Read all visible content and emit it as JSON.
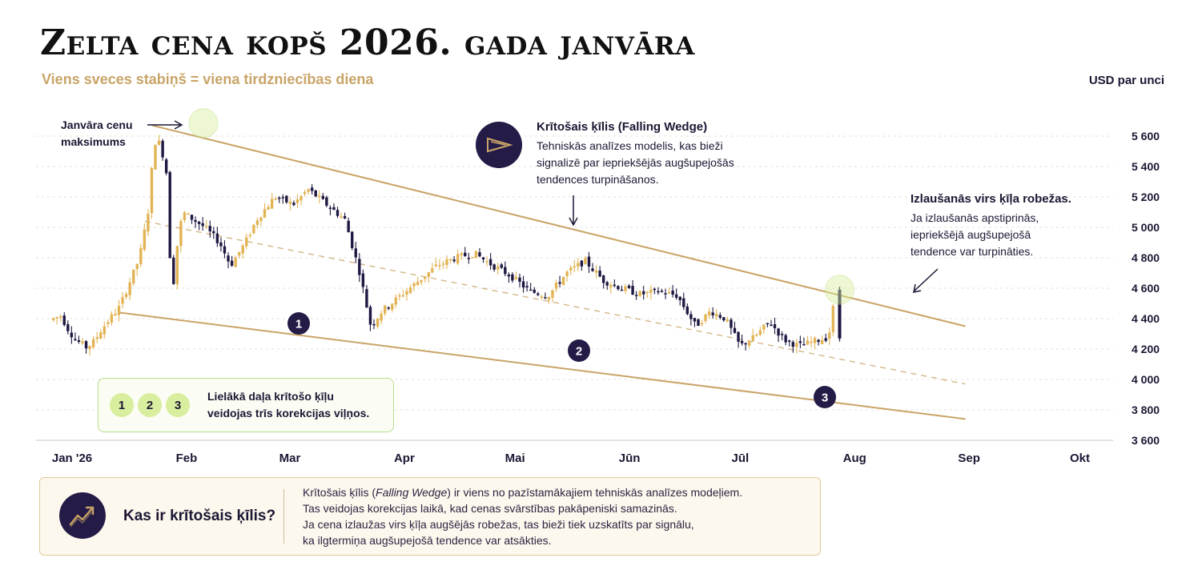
{
  "title": "Zelta cena kopš 2026. gada janvāra",
  "subtitle": "Viens sveces stabiņš = viena tirdzniecības diena",
  "unit_label": "USD par unci",
  "annotations": {
    "peak_line1": "Janvāra cenu",
    "peak_line2": "maksimums",
    "wedge_title": "Krītošais ķīlis (Falling Wedge)",
    "wedge_desc_1": "Tehniskās analīzes modelis, kas bieži",
    "wedge_desc_2": "signalizē par iepriekšējās augšupejošās",
    "wedge_desc_3": "tendences turpināšanos.",
    "wedge_icon": "falling-wedge-icon",
    "breakout_title": "Izlaušanās virs ķīļa robežas.",
    "breakout_desc_1": "Ja izlaušanās apstiprinās,",
    "breakout_desc_2": "iepriekšējā augšupejošā",
    "breakout_desc_3": "tendence var turpināties.",
    "waves_line1": "Lielākā daļa krītošo ķīļu",
    "waves_line2": "veidojas trīs korekcijas viļņos.",
    "wave_numbers": [
      "1",
      "2",
      "3"
    ]
  },
  "info": {
    "heading": "Kas ir krītošais ķīlis?",
    "icon": "trend-up-icon",
    "line1_pre": "Krītošais ķīlis (",
    "line1_italic": "Falling Wedge",
    "line1_post": ") ir viens no pazīstamākajiem tehniskās analīzes modeļiem.",
    "line2": "Tas veidojas korekcijas laikā, kad cenas svārstības pakāpeniski samazinās.",
    "line3": "Ja cena izlaužas virs ķīļa augšējās robežas, tas bieži tiek uzskatīts par signālu,",
    "line4": "ka ilgtermiņa augšupejošā tendence var atsākties."
  },
  "colors": {
    "up": "#e3b455",
    "down": "#1f1842",
    "wedge_line": "#c9a467",
    "highlight": "#d9ee9f",
    "dark": "#241b47"
  },
  "chart_data": {
    "type": "candlestick",
    "title": "Zelta cena kopš 2026. gada janvāra",
    "ylabel": "USD par unci",
    "ylim": [
      3600,
      5700
    ],
    "yticks": [
      3600,
      3800,
      4000,
      4200,
      4400,
      4600,
      4800,
      5000,
      5200,
      5400,
      5600
    ],
    "ytick_labels": [
      "3 600",
      "3 800",
      "4 000",
      "4 200",
      "4 400",
      "4 600",
      "4 800",
      "5 000",
      "5 200",
      "5 400",
      "5 600"
    ],
    "xticks": [
      "Jan '26",
      "Feb",
      "Mar",
      "Apr",
      "Mai",
      "Jūn",
      "Jūl",
      "Aug",
      "Sep",
      "Okt"
    ],
    "grid": true,
    "trend_lines": [
      {
        "name": "upper",
        "start": [
          "2026-01-31",
          5670
        ],
        "end": [
          "2026-08-31",
          4350
        ]
      },
      {
        "name": "middle",
        "start": [
          "2026-01-29",
          5040
        ],
        "end": [
          "2026-08-31",
          3970
        ],
        "style": "dashed"
      },
      {
        "name": "lower",
        "start": [
          "2026-01-22",
          4440
        ],
        "end": [
          "2026-08-31",
          3740
        ]
      }
    ],
    "wave_markers": [
      {
        "label": "1",
        "date": "2026-02-24",
        "price": 4390
      },
      {
        "label": "2",
        "date": "2026-05-06",
        "price": 4210
      },
      {
        "label": "3",
        "date": "2026-07-11",
        "price": 3915
      }
    ],
    "highlights": [
      {
        "date": "2026-01-31",
        "price": 5685
      },
      {
        "date": "2026-08-03",
        "price": 4590
      }
    ],
    "series_close": [
      [
        "2026-01-02",
        4390
      ],
      [
        "2026-01-05",
        4420
      ],
      [
        "2026-01-07",
        4330
      ],
      [
        "2026-01-09",
        4260
      ],
      [
        "2026-01-12",
        4210
      ],
      [
        "2026-01-14",
        4250
      ],
      [
        "2026-01-16",
        4330
      ],
      [
        "2026-01-19",
        4420
      ],
      [
        "2026-01-21",
        4480
      ],
      [
        "2026-01-23",
        4600
      ],
      [
        "2026-01-26",
        4780
      ],
      [
        "2026-01-27",
        4880
      ],
      [
        "2026-01-28",
        5020
      ],
      [
        "2026-01-29",
        5150
      ],
      [
        "2026-01-30",
        5500
      ],
      [
        "2026-01-31",
        5600
      ],
      [
        "2026-02-02",
        5450
      ],
      [
        "2026-02-03",
        5300
      ],
      [
        "2026-02-04",
        4450
      ],
      [
        "2026-02-05",
        4800
      ],
      [
        "2026-02-07",
        5100
      ],
      [
        "2026-02-10",
        5050
      ],
      [
        "2026-02-13",
        5000
      ],
      [
        "2026-02-17",
        4900
      ],
      [
        "2026-02-20",
        4750
      ],
      [
        "2026-02-24",
        4900
      ],
      [
        "2026-02-27",
        5050
      ],
      [
        "2026-03-04",
        5200
      ],
      [
        "2026-03-09",
        5150
      ],
      [
        "2026-03-13",
        5250
      ],
      [
        "2026-03-18",
        5150
      ],
      [
        "2026-03-23",
        5050
      ],
      [
        "2026-03-27",
        4700
      ],
      [
        "2026-03-30",
        4350
      ],
      [
        "2026-04-02",
        4450
      ],
      [
        "2026-04-07",
        4550
      ],
      [
        "2026-04-12",
        4650
      ],
      [
        "2026-04-17",
        4750
      ],
      [
        "2026-04-22",
        4800
      ],
      [
        "2026-04-27",
        4830
      ],
      [
        "2026-05-02",
        4750
      ],
      [
        "2026-05-07",
        4680
      ],
      [
        "2026-05-12",
        4580
      ],
      [
        "2026-05-17",
        4550
      ],
      [
        "2026-05-22",
        4700
      ],
      [
        "2026-05-27",
        4780
      ],
      [
        "2026-06-01",
        4650
      ],
      [
        "2026-06-06",
        4600
      ],
      [
        "2026-06-11",
        4560
      ],
      [
        "2026-06-16",
        4580
      ],
      [
        "2026-06-21",
        4550
      ],
      [
        "2026-06-26",
        4350
      ],
      [
        "2026-06-30",
        4450
      ],
      [
        "2026-07-04",
        4400
      ],
      [
        "2026-07-08",
        4220
      ],
      [
        "2026-07-12",
        4280
      ],
      [
        "2026-07-16",
        4380
      ],
      [
        "2026-07-20",
        4260
      ],
      [
        "2026-07-24",
        4220
      ],
      [
        "2026-07-28",
        4250
      ],
      [
        "2026-08-01",
        4280
      ],
      [
        "2026-08-03",
        4590
      ]
    ]
  }
}
